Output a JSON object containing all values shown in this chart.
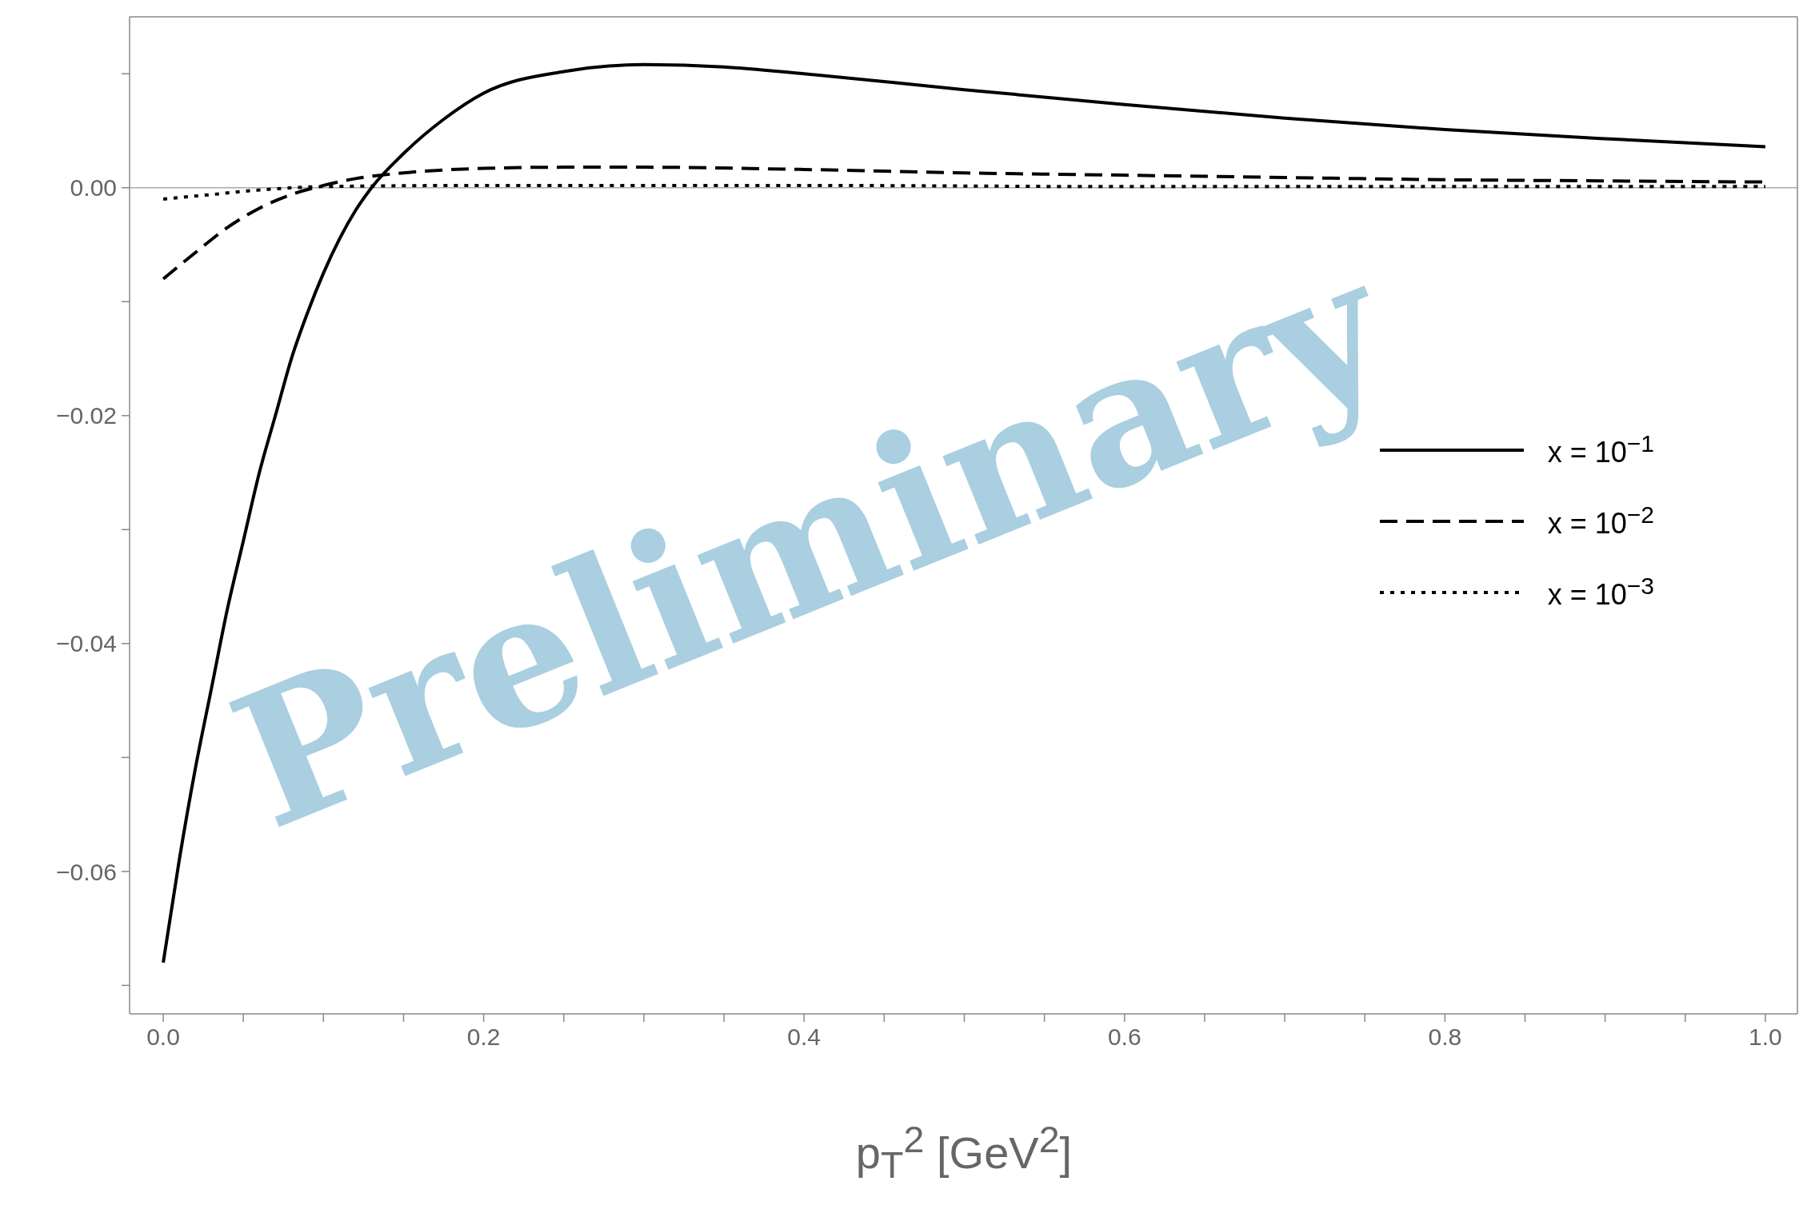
{
  "chart_data": {
    "type": "line",
    "xlabel": "p$_{T}$$^{2}$ [GeV$^{2}$]",
    "annotations": [
      "Preliminary"
    ],
    "xlim": [
      -0.021,
      1.02
    ],
    "ylim": [
      -0.0725,
      0.015
    ],
    "xticks": [
      {
        "value": 0,
        "label": "0.0"
      },
      {
        "value": 0.05,
        "label": null
      },
      {
        "value": 0.1,
        "label": null
      },
      {
        "value": 0.15,
        "label": null
      },
      {
        "value": 0.2,
        "label": "0.2"
      },
      {
        "value": 0.25,
        "label": null
      },
      {
        "value": 0.3,
        "label": null
      },
      {
        "value": 0.35,
        "label": null
      },
      {
        "value": 0.4,
        "label": "0.4"
      },
      {
        "value": 0.45,
        "label": null
      },
      {
        "value": 0.5,
        "label": null
      },
      {
        "value": 0.55,
        "label": null
      },
      {
        "value": 0.6,
        "label": "0.6"
      },
      {
        "value": 0.65,
        "label": null
      },
      {
        "value": 0.7,
        "label": null
      },
      {
        "value": 0.75,
        "label": null
      },
      {
        "value": 0.8,
        "label": "0.8"
      },
      {
        "value": 0.85,
        "label": null
      },
      {
        "value": 0.9,
        "label": null
      },
      {
        "value": 0.95,
        "label": null
      },
      {
        "value": 1,
        "label": "1.0"
      }
    ],
    "yticks": [
      {
        "value": -0.07,
        "label": null
      },
      {
        "value": -0.06,
        "label": "−0.06"
      },
      {
        "value": -0.05,
        "label": null
      },
      {
        "value": -0.04,
        "label": "−0.04"
      },
      {
        "value": -0.03,
        "label": null
      },
      {
        "value": -0.02,
        "label": "−0.02"
      },
      {
        "value": -0.01,
        "label": null
      },
      {
        "value": 0,
        "label": "0.00"
      },
      {
        "value": 0.01,
        "label": null
      }
    ],
    "ref_lines": [
      {
        "axis": "y",
        "value": 0,
        "color": "#aaaaaa"
      }
    ],
    "legend": "right",
    "marker": "none",
    "series": [
      {
        "name": "x = 10$^{−1}$",
        "color": "#000000",
        "line_style": "solid",
        "x": [
          0,
          0.01,
          0.02,
          0.03,
          0.04,
          0.05,
          0.06,
          0.07,
          0.08,
          0.09,
          0.1,
          0.11,
          0.12,
          0.13,
          0.15,
          0.175,
          0.2,
          0.25,
          0.3,
          0.35,
          0.4,
          0.5,
          0.6,
          0.7,
          0.8,
          0.9,
          1.0
        ],
        "values": [
          -0.068,
          -0.059,
          -0.051,
          -0.044,
          -0.037,
          -0.031,
          -0.025,
          -0.02,
          -0.015,
          -0.011,
          -0.0075,
          -0.0045,
          -0.002,
          0.0,
          0.003,
          0.006,
          0.0083,
          0.0102,
          0.0108,
          0.0106,
          0.01,
          0.0086,
          0.0073,
          0.0061,
          0.0051,
          0.0043,
          0.0036
        ]
      },
      {
        "name": "x = 10$^{−2}$",
        "color": "#000000",
        "line_style": "dashed",
        "x": [
          0,
          0.02,
          0.04,
          0.06,
          0.08,
          0.1,
          0.12,
          0.15,
          0.2,
          0.25,
          0.3,
          0.4,
          0.5,
          0.6,
          0.7,
          0.8,
          0.9,
          1.0
        ],
        "values": [
          -0.008,
          -0.0057,
          -0.0035,
          -0.0018,
          -0.0006,
          0.0002,
          0.0008,
          0.0013,
          0.0017,
          0.0018,
          0.0018,
          0.0016,
          0.0013,
          0.0011,
          0.0009,
          0.0007,
          0.0006,
          0.0005
        ]
      },
      {
        "name": "x = 10$^{−3}$",
        "color": "#000000",
        "line_style": "dotted",
        "x": [
          0,
          0.03,
          0.06,
          0.1,
          0.2,
          0.4,
          0.6,
          1.0
        ],
        "values": [
          -0.001,
          -0.0006,
          -0.0002,
          0.0001,
          0.0002,
          0.0002,
          0.0001,
          0.0001
        ]
      }
    ]
  }
}
